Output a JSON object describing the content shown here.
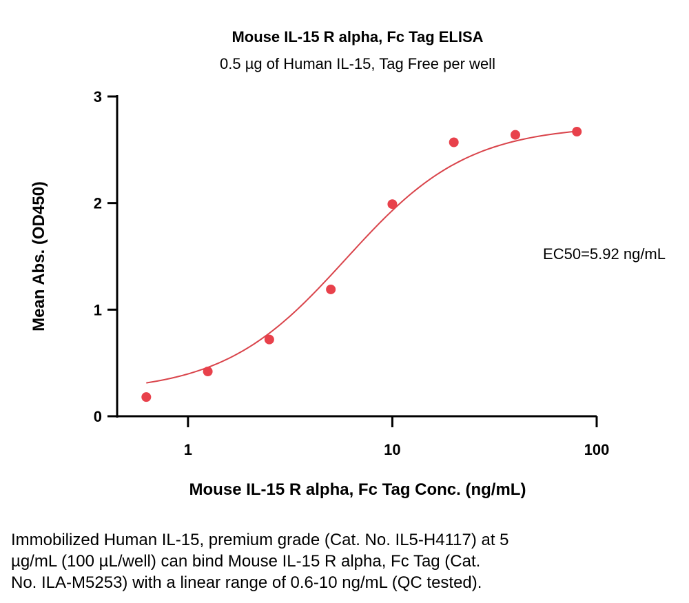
{
  "chart_data": {
    "type": "scatter",
    "title": "Mouse IL-15 R alpha, Fc Tag ELISA",
    "subtitle": "0.5 µg of Human IL-15, Tag Free per well",
    "xlabel": "Mouse IL-15 R alpha, Fc Tag Conc. (ng/mL)",
    "ylabel": "Mean Abs. (OD450)",
    "x_scale": "log",
    "xlim": [
      0.45,
      100
    ],
    "ylim": [
      0,
      3
    ],
    "x_ticks": [
      1,
      10,
      100
    ],
    "x_tick_labels": [
      "1",
      "10",
      "100"
    ],
    "y_ticks": [
      0,
      1,
      2,
      3
    ],
    "y_tick_labels": [
      "0",
      "1",
      "2",
      "3"
    ],
    "grid": false,
    "marker_color": "#e8414b",
    "curve_color": "#d9434a",
    "series": [
      {
        "points": [
          {
            "x": 0.625,
            "y": 0.18
          },
          {
            "x": 1.25,
            "y": 0.42
          },
          {
            "x": 2.5,
            "y": 0.72
          },
          {
            "x": 5,
            "y": 1.19
          },
          {
            "x": 10,
            "y": 1.99
          },
          {
            "x": 20,
            "y": 2.57
          },
          {
            "x": 40,
            "y": 2.64
          },
          {
            "x": 80,
            "y": 2.67
          }
        ]
      }
    ],
    "fit": {
      "model": "4PL",
      "bottom": 0.22,
      "top": 2.73,
      "ec50": 5.92,
      "hill": 1.45,
      "x_range": [
        0.625,
        80
      ]
    },
    "annotation": "EC50=5.92 ng/mL"
  },
  "caption": {
    "lines": [
      "Immobilized Human IL-15, premium grade (Cat. No. IL5-H4117) at 5",
      "µg/mL (100 µL/well) can bind Mouse IL-15 R alpha, Fc Tag (Cat.",
      "No. ILA-M5253) with a linear range of 0.6-10 ng/mL (QC tested)."
    ]
  }
}
